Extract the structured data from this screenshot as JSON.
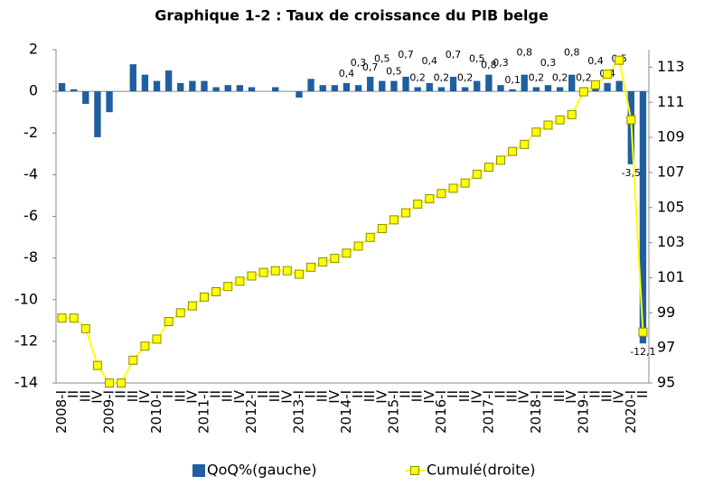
{
  "chart_data": {
    "type": "bar-line",
    "title": "Graphique 1-2 : Taux de croissance du PIB belge",
    "categories": [
      "2008-I",
      "II",
      "III",
      "IV",
      "2009-I",
      "II",
      "III",
      "IV",
      "2010-I",
      "II",
      "III",
      "IV",
      "2011-I",
      "II",
      "III",
      "IV",
      "2012-I",
      "II",
      "III",
      "IV",
      "2013-I",
      "II",
      "III",
      "IV",
      "2014-I",
      "II",
      "III",
      "IV",
      "2015-I",
      "II",
      "III",
      "IV",
      "2016-I",
      "II",
      "III",
      "IV",
      "2017-I",
      "II",
      "III",
      "IV",
      "2018-I",
      "II",
      "III",
      "IV",
      "2019-I",
      "II",
      "III",
      "IV",
      "2020-I",
      "II"
    ],
    "series": [
      {
        "name": "QoQ%(gauche)",
        "type": "bar",
        "color": "#1f5fa0",
        "values": [
          0.4,
          0.1,
          -0.6,
          -2.2,
          -1.0,
          0.0,
          1.3,
          0.8,
          0.5,
          1.0,
          0.4,
          0.5,
          0.5,
          0.2,
          0.3,
          0.3,
          0.2,
          0.0,
          0.2,
          0.0,
          -0.3,
          0.6,
          0.3,
          0.3,
          0.4,
          0.3,
          0.7,
          0.5,
          0.5,
          0.7,
          0.2,
          0.4,
          0.2,
          0.7,
          0.2,
          0.5,
          0.8,
          0.3,
          0.1,
          0.8,
          0.2,
          0.3,
          0.2,
          0.8,
          0.2,
          0.4,
          0.4,
          0.5,
          -3.5,
          -12.1
        ],
        "value_labels": [
          null,
          null,
          null,
          null,
          null,
          null,
          null,
          null,
          null,
          null,
          null,
          null,
          null,
          null,
          null,
          null,
          null,
          null,
          null,
          null,
          null,
          null,
          null,
          null,
          "0,4",
          "0,3",
          "0,7",
          "0,5",
          "0,5",
          "0,7",
          "0,2",
          "0,4",
          "0,2",
          "0,7",
          "0,2",
          "0,5",
          "0,8",
          "0,3",
          "0,1",
          "0,8",
          "0,2",
          "0,3",
          "0,2",
          "0,8",
          "0,2",
          "0,4",
          "0,4",
          "0,5",
          "-3,5",
          "-12,1"
        ]
      },
      {
        "name": "Cumulé(droite)",
        "type": "line",
        "axis": "y2",
        "color": "#ffff00",
        "values": [
          98.7,
          98.7,
          98.1,
          96.0,
          95.0,
          95.0,
          96.3,
          97.1,
          97.5,
          98.5,
          99.0,
          99.4,
          99.9,
          100.2,
          100.5,
          100.8,
          101.1,
          101.3,
          101.4,
          101.4,
          101.2,
          101.6,
          101.9,
          102.1,
          102.4,
          102.8,
          103.3,
          103.8,
          104.3,
          104.7,
          105.2,
          105.5,
          105.8,
          106.1,
          106.4,
          106.9,
          107.3,
          107.7,
          108.2,
          108.6,
          109.3,
          109.7,
          110.0,
          110.3,
          111.6,
          112.0,
          112.6,
          113.4,
          110.0,
          97.9
        ]
      }
    ],
    "ylim": [
      -14,
      2
    ],
    "yticks": [
      -14,
      -12,
      -10,
      -8,
      -6,
      -4,
      -2,
      0,
      2
    ],
    "y2lim": [
      95,
      114
    ],
    "y2ticks": [
      95,
      97,
      99,
      101,
      103,
      105,
      107,
      109,
      111,
      113
    ],
    "legend": "bottom"
  }
}
